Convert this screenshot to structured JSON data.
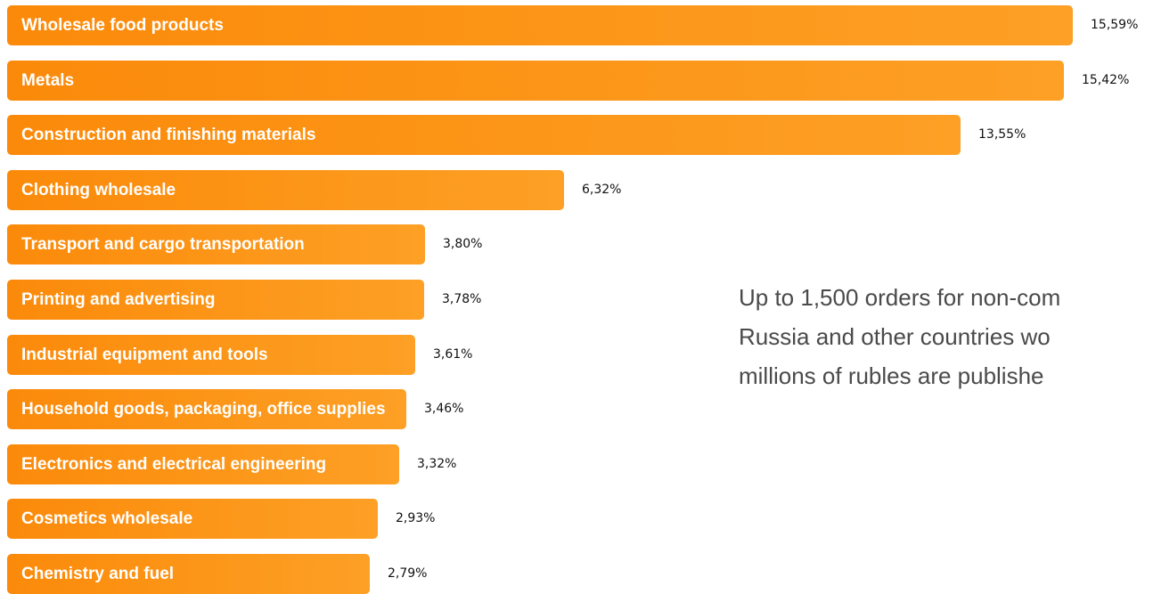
{
  "colors": {
    "bar_start": "#fb8a0a",
    "bar_end": "#fda025",
    "label_text": "#ffffff",
    "value_text": "#111111",
    "description_text": "#4a4a4a"
  },
  "chart_data": {
    "type": "bar",
    "orientation": "horizontal",
    "categories": [
      "Wholesale food products",
      "Metals",
      "Construction and finishing materials",
      "Clothing wholesale",
      "Transport and cargo transportation",
      "Printing and advertising",
      "Industrial equipment and tools",
      "Household goods, packaging, office supplies",
      "Electronics and electrical engineering",
      "Cosmetics wholesale",
      "Chemistry and fuel"
    ],
    "values": [
      15.59,
      15.42,
      13.55,
      6.32,
      3.8,
      3.78,
      3.61,
      3.46,
      3.32,
      2.93,
      2.79
    ],
    "value_labels": [
      "15,59%",
      "15,42%",
      "13,55%",
      "6,32%",
      "3,80%",
      "3,78%",
      "3,61%",
      "3,46%",
      "3,32%",
      "2,93%",
      "2,79%"
    ],
    "title": "",
    "xlabel": "",
    "ylabel": "",
    "grid": false,
    "legend": "none"
  },
  "description": {
    "lines": [
      "Up to 1,500 orders for non-com",
      "Russia and other countries wo",
      "millions of rubles are publishe"
    ]
  }
}
